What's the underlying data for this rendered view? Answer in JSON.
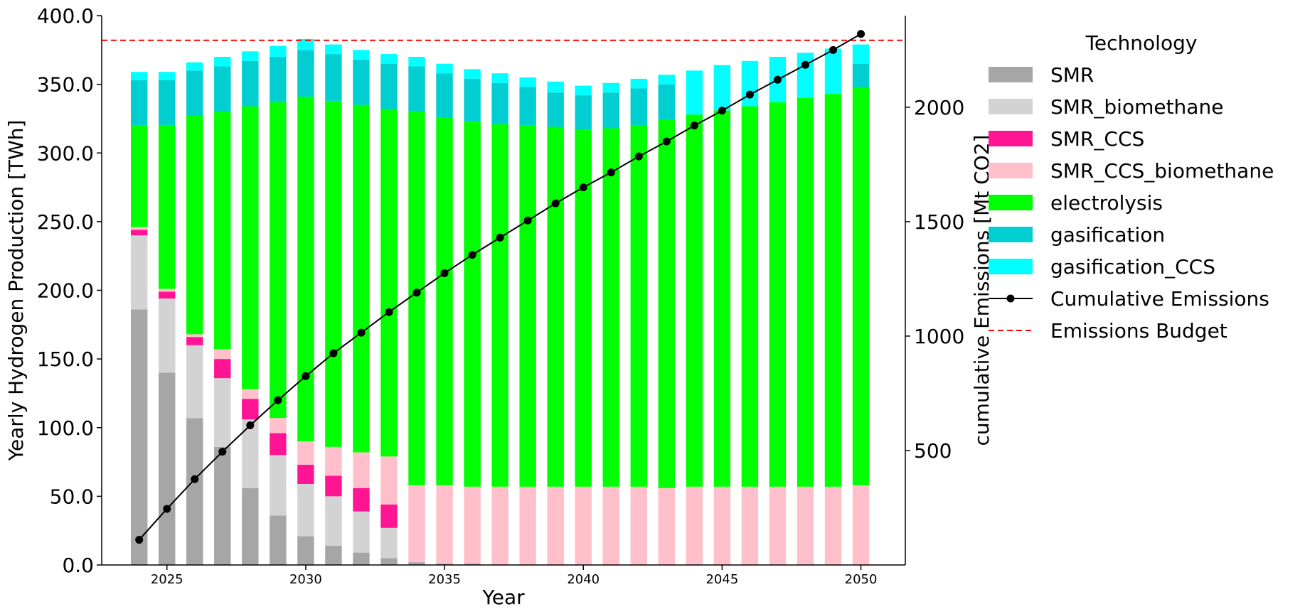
{
  "chart_data": {
    "type": "bar",
    "stacked": true,
    "x": [
      2024,
      2025,
      2026,
      2027,
      2028,
      2029,
      2030,
      2031,
      2032,
      2033,
      2034,
      2035,
      2036,
      2037,
      2038,
      2039,
      2040,
      2041,
      2042,
      2043,
      2044,
      2045,
      2046,
      2047,
      2048,
      2049,
      2050
    ],
    "xticks": [
      2025,
      2030,
      2035,
      2040,
      2045,
      2050
    ],
    "xlabel": "Year",
    "ylabel": "Yearly Hydrogen Production [TWh]",
    "ylim": [
      0,
      400
    ],
    "yticks": [
      "0.0",
      "50.0",
      "100.0",
      "150.0",
      "200.0",
      "250.0",
      "300.0",
      "350.0",
      "400.0"
    ],
    "y2label": "cumulative Emissions [Mt CO2]",
    "y2lim": [
      0,
      2400
    ],
    "y2ticks": [
      500,
      1000,
      1500,
      2000
    ],
    "legend": {
      "title": "Technology",
      "placement": "outside-right"
    },
    "series": [
      {
        "name": "SMR",
        "color": "#a6a6a6",
        "values": [
          186,
          140,
          107,
          86,
          56,
          36,
          21,
          14,
          9,
          5,
          2,
          1,
          1,
          0,
          0,
          0,
          0,
          0,
          0,
          0,
          0,
          0,
          0,
          0,
          0,
          0,
          0
        ]
      },
      {
        "name": "SMR_biomethane",
        "color": "#d3d3d3",
        "values": [
          54,
          54,
          53,
          50,
          50,
          44,
          38,
          36,
          30,
          22,
          0,
          0,
          0,
          0,
          0,
          0,
          0,
          0,
          0,
          0,
          0,
          0,
          0,
          0,
          0,
          0,
          0
        ]
      },
      {
        "name": "SMR_CCS",
        "color": "#ff1493",
        "values": [
          4,
          5,
          6,
          14,
          15,
          16,
          14,
          15,
          17,
          17,
          0,
          0,
          0,
          0,
          0,
          0,
          0,
          0,
          0,
          0,
          0,
          0,
          0,
          0,
          0,
          0,
          0
        ]
      },
      {
        "name": "SMR_CCS_biomethane",
        "color": "#ffc0cb",
        "values": [
          2,
          2,
          2,
          7,
          7,
          11,
          17,
          21,
          26,
          35,
          56,
          57,
          56,
          57,
          57,
          57,
          57,
          57,
          57,
          56,
          57,
          57,
          57,
          57,
          57,
          57,
          58
        ]
      },
      {
        "name": "electrolysis",
        "color": "#00ff00",
        "values": [
          74,
          119,
          159,
          173,
          206,
          230,
          251,
          252,
          253,
          253,
          272,
          268,
          266,
          264,
          263,
          262,
          260,
          261,
          263,
          268,
          271,
          274,
          277,
          280,
          283,
          286,
          290
        ]
      },
      {
        "name": "gasification",
        "color": "#00ced1",
        "values": [
          33,
          33,
          33,
          33,
          33,
          33,
          34,
          34,
          33,
          33,
          33,
          32,
          31,
          30,
          28,
          25,
          25,
          26,
          27,
          26,
          0,
          0,
          0,
          0,
          0,
          0,
          17
        ]
      },
      {
        "name": "gasification_CCS",
        "color": "#00ffff",
        "values": [
          6,
          6,
          6,
          7,
          7,
          8,
          8,
          7,
          7,
          7,
          7,
          7,
          7,
          7,
          7,
          8,
          7,
          7,
          7,
          7,
          32,
          33,
          33,
          33,
          33,
          33,
          14
        ]
      }
    ],
    "lines": [
      {
        "name": "Cumulative Emissions",
        "axis": "right",
        "color": "#000000",
        "marker": "circle",
        "values": [
          110,
          245,
          375,
          495,
          610,
          720,
          825,
          925,
          1015,
          1105,
          1190,
          1275,
          1355,
          1430,
          1505,
          1580,
          1650,
          1715,
          1785,
          1850,
          1920,
          1985,
          2055,
          2120,
          2185,
          2250,
          2320
        ]
      },
      {
        "name": "Emissions Budget",
        "axis": "right",
        "color": "#ff0000",
        "style": "dashed",
        "values": [
          2292
        ]
      }
    ]
  }
}
